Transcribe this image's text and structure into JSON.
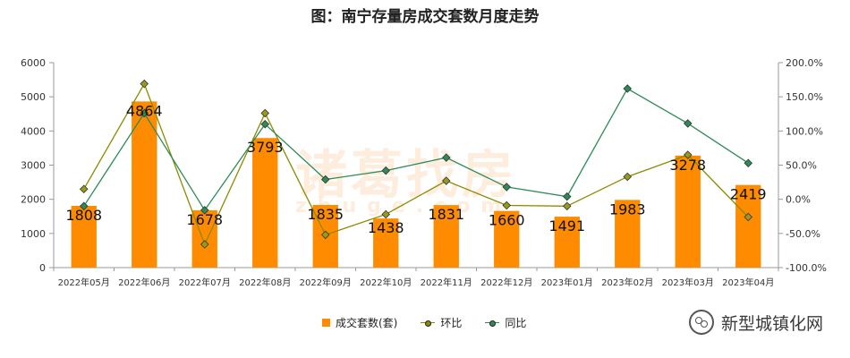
{
  "chart_data": {
    "type": "bar",
    "title": "图：南宁存量房成交套数月度走势",
    "categories": [
      "2022年05月",
      "2022年06月",
      "2022年07月",
      "2022年08月",
      "2022年09月",
      "2022年10月",
      "2022年11月",
      "2022年12月",
      "2023年01月",
      "2023年02月",
      "2023年03月",
      "2023年04月"
    ],
    "series": [
      {
        "name": "成交套数(套)",
        "type": "bar",
        "axis": "left",
        "color": "#ff8c00",
        "values": [
          1808,
          4864,
          1678,
          3793,
          1835,
          1438,
          1831,
          1660,
          1491,
          1983,
          3278,
          2419
        ],
        "data_labels": [
          "1808",
          "4864",
          "1678",
          "3793",
          "1835",
          "1438",
          "1831",
          "1660",
          "1491",
          "1983",
          "3278",
          "2419"
        ]
      },
      {
        "name": "环比",
        "type": "line",
        "axis": "right",
        "color": "#8b8b00",
        "marker": "#9a9a1a",
        "values": [
          15.0,
          169.0,
          -66.0,
          126.0,
          -52.0,
          -22.0,
          27.0,
          -9.0,
          -10.0,
          33.0,
          65.0,
          -26.0
        ]
      },
      {
        "name": "同比",
        "type": "line",
        "axis": "right",
        "color": "#2e8b57",
        "marker": "#2e8b57",
        "values": [
          -10.0,
          126.0,
          -16.0,
          110.0,
          29.0,
          42.0,
          61.0,
          18.0,
          4.0,
          162.0,
          111.0,
          53.0
        ]
      }
    ],
    "y_left": {
      "min": 0,
      "max": 6000,
      "ticks": [
        0,
        1000,
        2000,
        3000,
        4000,
        5000,
        6000
      ],
      "tick_labels": [
        "0",
        "1000",
        "2000",
        "3000",
        "4000",
        "5000",
        "6000"
      ]
    },
    "y_right": {
      "min": -100,
      "max": 200,
      "ticks": [
        -100,
        -50,
        0,
        50,
        100,
        150,
        200
      ],
      "tick_labels": [
        "-100.0%",
        "-50.0%",
        "0.0%",
        "50.0%",
        "100.0%",
        "150.0%",
        "200.0%"
      ]
    },
    "grid": false,
    "legend_position": "bottom-center"
  },
  "watermark": {
    "text": "诸葛找房",
    "subtext": "zhuge.com"
  },
  "source": {
    "text": "新型城镇化网",
    "icon": "wechat-icon"
  }
}
